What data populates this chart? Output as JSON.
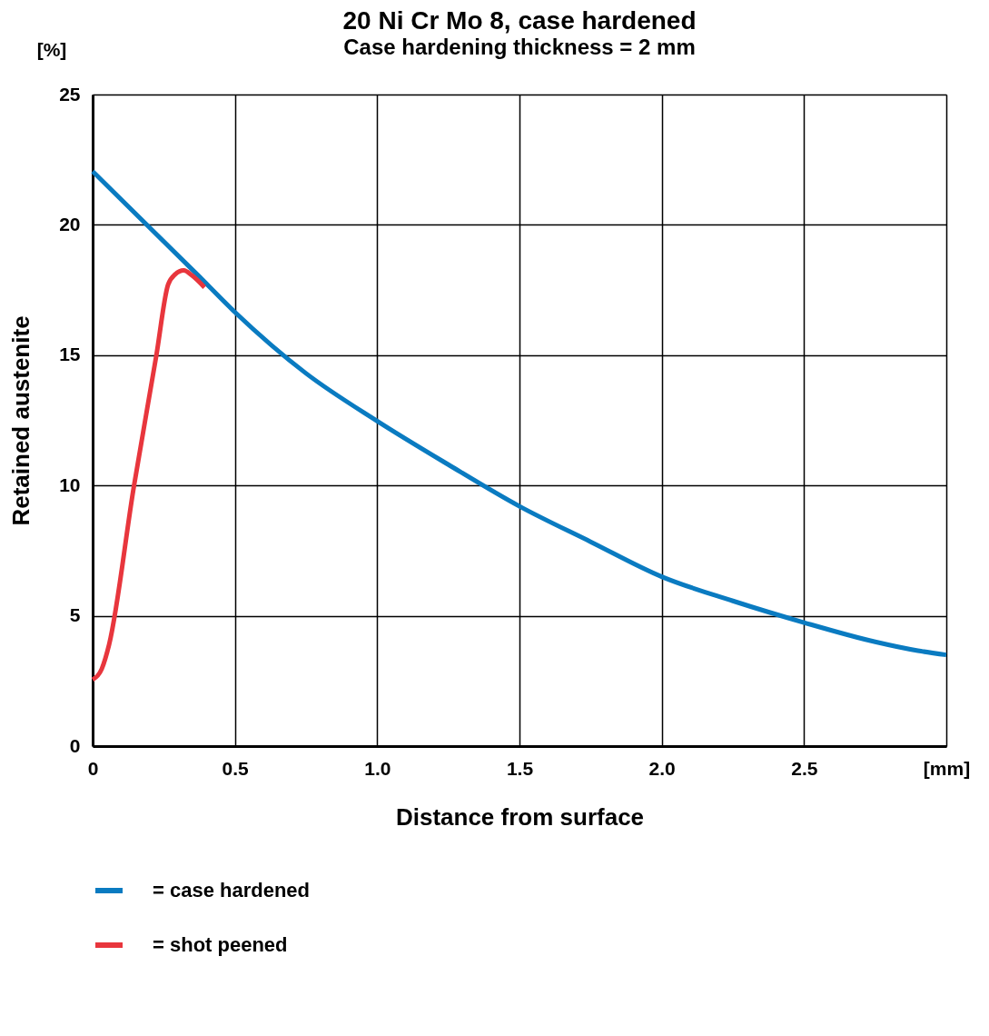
{
  "chart_data": {
    "type": "line",
    "title": "20 Ni Cr Mo 8,  case hardened",
    "subtitle": "Case hardening thickness = 2 mm",
    "xlabel": "Distance from surface",
    "ylabel": "Retained austenite",
    "annotations": [
      "[%]"
    ],
    "xlim": [
      0,
      3
    ],
    "ylim": [
      0,
      25
    ],
    "xticks": [
      0,
      0.5,
      {
        "value": 1,
        "label": "1.0"
      },
      1.5,
      {
        "value": 2,
        "label": "2.0"
      },
      2.5,
      {
        "value": 3,
        "label": "[mm]"
      }
    ],
    "yticks": [
      0,
      5,
      10,
      15,
      20,
      25
    ],
    "grid": true,
    "legend": "bottom",
    "line_style": "solid",
    "marker": "none",
    "series": [
      {
        "name": "= case hardened",
        "color": "#0a7bc1",
        "x": [
          0,
          0.367,
          0.5,
          0.75,
          1,
          1.25,
          1.5,
          1.75,
          2,
          2.25,
          2.5,
          2.75,
          2.9,
          3
        ],
        "values": [
          22.05,
          18.1,
          16.65,
          14.3,
          12.47,
          10.8,
          9.2,
          7.84,
          6.5,
          5.57,
          4.74,
          4,
          3.66,
          3.5
        ]
      },
      {
        "name": "= shot peened",
        "color": "#e8363d",
        "x": [
          0,
          0.032,
          0.058,
          0.144,
          0.224,
          0.265,
          0.29,
          0.32,
          0.35,
          0.393
        ],
        "values": [
          2.55,
          2.96,
          3.9,
          9.9,
          15,
          17.7,
          18.1,
          18.25,
          18.05,
          17.6
        ]
      }
    ]
  }
}
